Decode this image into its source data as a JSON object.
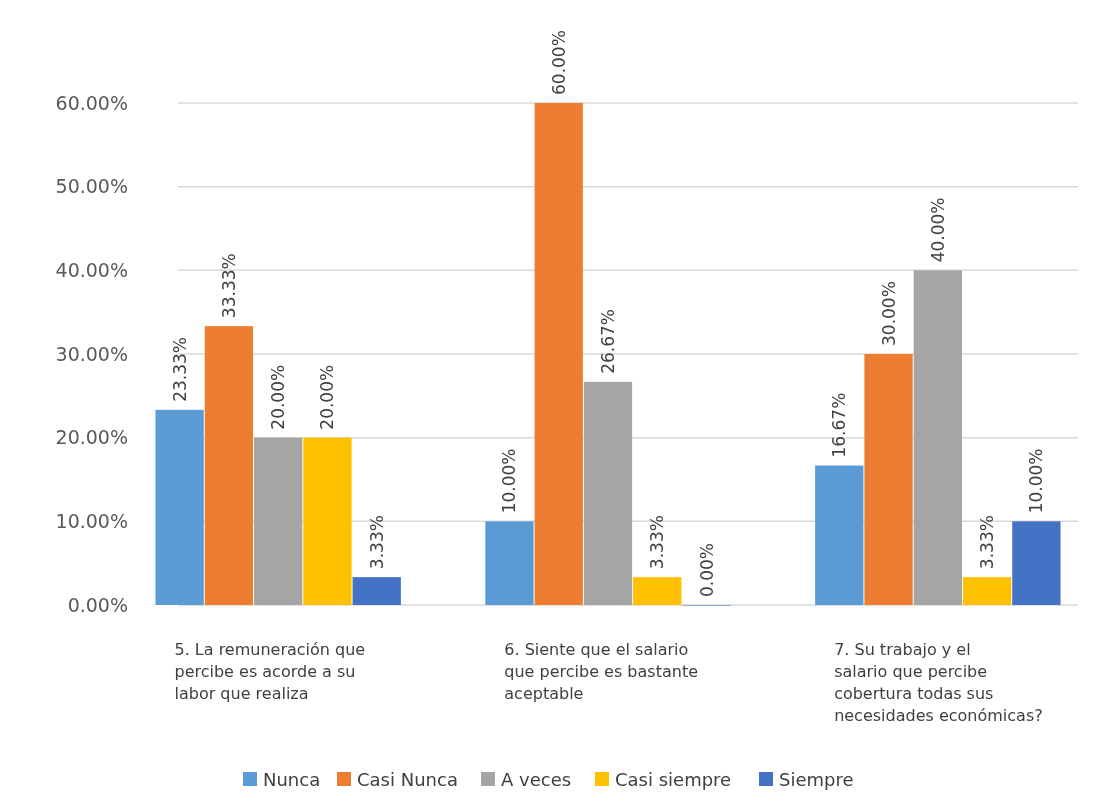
{
  "chart_data": {
    "type": "bar",
    "categories": [
      "5. La remuneración que percibe es acorde a su labor que realiza",
      "6. Siente que el salario que percibe es bastante aceptable",
      "7. Su trabajo y el salario que percibe cobertura todas sus necesidades económicas?"
    ],
    "series": [
      {
        "name": "Nunca",
        "color": "#5b9bd5",
        "values": [
          23.33,
          10.0,
          16.67
        ],
        "value_labels": [
          "23.33%",
          "10.00%",
          "16.67%"
        ]
      },
      {
        "name": "Casi Nunca",
        "color": "#ed7d31",
        "values": [
          33.33,
          60.0,
          30.0
        ],
        "value_labels": [
          "33.33%",
          "60.00%",
          "30.00%"
        ]
      },
      {
        "name": "A veces",
        "color": "#a5a5a5",
        "values": [
          20.0,
          26.67,
          40.0
        ],
        "value_labels": [
          "20.00%",
          "26.67%",
          "40.00%"
        ]
      },
      {
        "name": "Casi siempre",
        "color": "#ffc000",
        "values": [
          20.0,
          3.33,
          3.33
        ],
        "value_labels": [
          "20.00%",
          "3.33%",
          "3.33%"
        ]
      },
      {
        "name": "Siempre",
        "color": "#4472c4",
        "values": [
          3.33,
          0.0,
          10.0
        ],
        "value_labels": [
          "3.33%",
          "0.00%",
          "10.00%"
        ]
      }
    ],
    "ylim": [
      0,
      60
    ],
    "yticks": [
      {
        "value": 0,
        "label": "0.00%"
      },
      {
        "value": 10,
        "label": "10.00%"
      },
      {
        "value": 20,
        "label": "20.00%"
      },
      {
        "value": 30,
        "label": "30.00%"
      },
      {
        "value": 40,
        "label": "40.00%"
      },
      {
        "value": 50,
        "label": "50.00%"
      },
      {
        "value": 60,
        "label": "60.00%"
      }
    ],
    "grid": "y",
    "legend": "bottom"
  }
}
